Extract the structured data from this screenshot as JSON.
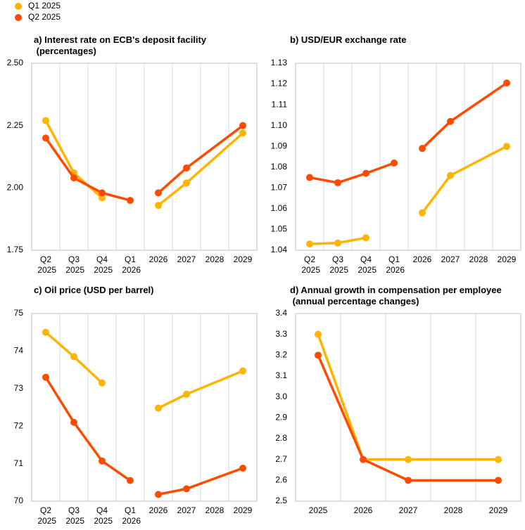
{
  "legend": [
    {
      "name": "Q1 2025",
      "color": "#ffb400"
    },
    {
      "name": "Q2 2025",
      "color": "#ff4b00"
    }
  ],
  "chart_data": [
    {
      "type": "line",
      "title": "a) Interest rate on ECB's deposit facility (percentages)",
      "categories": [
        "Q2 2025",
        "Q3 2025",
        "Q4 2025",
        "Q1 2026",
        "2026",
        "2027",
        "2028",
        "2029"
      ],
      "line_groups": [
        [
          0,
          1,
          2,
          3
        ],
        [
          4,
          5,
          6,
          7
        ]
      ],
      "series": [
        {
          "values": [
            2.27,
            2.06,
            1.96,
            null,
            1.93,
            2.02,
            null,
            2.22
          ]
        },
        {
          "values": [
            2.2,
            2.04,
            1.98,
            1.95,
            1.98,
            2.08,
            null,
            2.25
          ]
        }
      ],
      "ylim": [
        1.75,
        2.5
      ],
      "yticks": [
        1.75,
        {
          "value": 2.0,
          "label": "2.00"
        },
        2.25,
        {
          "value": 2.5,
          "label": "2.50"
        }
      ],
      "grid": "x"
    },
    {
      "type": "line",
      "title": "b) USD/EUR exchange rate",
      "categories": [
        "Q2 2025",
        "Q3 2025",
        "Q4 2025",
        "Q1 2026",
        "2026",
        "2027",
        "2028",
        "2029"
      ],
      "line_groups": [
        [
          0,
          1,
          2,
          3
        ],
        [
          4,
          5,
          6,
          7
        ]
      ],
      "series": [
        {
          "values": [
            1.043,
            1.0435,
            1.046,
            null,
            1.058,
            1.076,
            null,
            1.09
          ]
        },
        {
          "values": [
            1.075,
            1.0725,
            1.077,
            1.082,
            1.089,
            1.102,
            null,
            1.1205
          ]
        }
      ],
      "ylim": [
        1.04,
        1.13
      ],
      "yticks": [
        1.04,
        1.05,
        1.06,
        1.07,
        1.08,
        1.09,
        {
          "value": 1.1,
          "label": "1.10"
        },
        1.11,
        1.12,
        1.13
      ],
      "grid": "x"
    },
    {
      "type": "line",
      "title": "c) Oil price (USD per barrel)",
      "categories": [
        "Q2 2025",
        "Q3 2025",
        "Q4 2025",
        "Q1 2026",
        "2026",
        "2027",
        "2028",
        "2029"
      ],
      "line_groups": [
        [
          0,
          1,
          2,
          3
        ],
        [
          4,
          5,
          6,
          7
        ]
      ],
      "series": [
        {
          "values": [
            74.5,
            73.85,
            73.15,
            null,
            72.48,
            72.85,
            null,
            73.47
          ]
        },
        {
          "values": [
            73.3,
            72.1,
            71.07,
            70.55,
            70.18,
            70.33,
            null,
            70.88
          ]
        }
      ],
      "ylim": [
        70,
        75
      ],
      "yticks": [
        70,
        71,
        72,
        73,
        74,
        75
      ],
      "grid": "x"
    },
    {
      "type": "line",
      "title": "d) Annual growth in compensation per employee (annual percentage changes)",
      "categories": [
        "2025",
        "2026",
        "2027",
        "2028",
        "2029"
      ],
      "line_groups": [
        [
          0,
          1,
          2,
          3,
          4
        ]
      ],
      "series": [
        {
          "values": [
            3.3,
            2.7,
            2.7,
            null,
            2.7
          ]
        },
        {
          "values": [
            3.2,
            2.7,
            2.6,
            null,
            2.6
          ]
        }
      ],
      "ylim": [
        2.5,
        3.4
      ],
      "yticks": [
        2.5,
        2.6,
        2.7,
        2.8,
        2.9,
        {
          "value": 3.0,
          "label": "3.0"
        },
        3.1,
        3.2,
        3.3,
        3.4
      ],
      "grid": "x"
    }
  ]
}
